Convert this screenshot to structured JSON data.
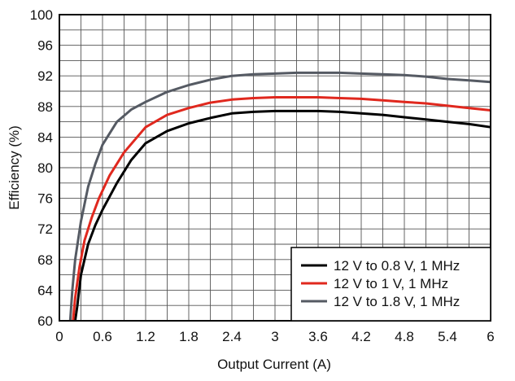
{
  "chart_data": {
    "type": "line",
    "xlabel": "Output Current (A)",
    "ylabel": "Efficiency (%)",
    "xlim": [
      0,
      6
    ],
    "ylim": [
      60,
      100
    ],
    "x_ticks": [
      "0",
      "0.6",
      "1.2",
      "1.8",
      "2.4",
      "3",
      "3.6",
      "4.2",
      "4.8",
      "5.4",
      "6"
    ],
    "y_ticks": [
      "60",
      "64",
      "68",
      "72",
      "76",
      "80",
      "84",
      "88",
      "92",
      "96",
      "100"
    ],
    "grid": true,
    "legend_position": "bottom-right",
    "series": [
      {
        "name": "12 V to 0.8 V, 1 MHz",
        "color": "#000000",
        "points": [
          [
            0.22,
            60
          ],
          [
            0.25,
            62
          ],
          [
            0.3,
            66
          ],
          [
            0.4,
            70
          ],
          [
            0.5,
            72.5
          ],
          [
            0.6,
            74.5
          ],
          [
            0.8,
            78
          ],
          [
            1.0,
            81
          ],
          [
            1.2,
            83.2
          ],
          [
            1.5,
            84.8
          ],
          [
            1.8,
            85.8
          ],
          [
            2.1,
            86.5
          ],
          [
            2.4,
            87.1
          ],
          [
            2.7,
            87.3
          ],
          [
            3.0,
            87.4
          ],
          [
            3.3,
            87.4
          ],
          [
            3.6,
            87.4
          ],
          [
            3.9,
            87.3
          ],
          [
            4.2,
            87.1
          ],
          [
            4.5,
            86.9
          ],
          [
            4.8,
            86.6
          ],
          [
            5.1,
            86.3
          ],
          [
            5.4,
            86.0
          ],
          [
            5.7,
            85.7
          ],
          [
            6.0,
            85.3
          ]
        ]
      },
      {
        "name": "12 V to 1 V, 1 MHz",
        "color": "#e0281e",
        "points": [
          [
            0.19,
            60
          ],
          [
            0.22,
            63
          ],
          [
            0.28,
            67
          ],
          [
            0.35,
            70.5
          ],
          [
            0.45,
            73.5
          ],
          [
            0.55,
            76
          ],
          [
            0.7,
            79
          ],
          [
            0.9,
            82
          ],
          [
            1.2,
            85.3
          ],
          [
            1.5,
            86.9
          ],
          [
            1.8,
            87.8
          ],
          [
            2.1,
            88.5
          ],
          [
            2.4,
            88.9
          ],
          [
            2.7,
            89.1
          ],
          [
            3.0,
            89.2
          ],
          [
            3.3,
            89.2
          ],
          [
            3.6,
            89.2
          ],
          [
            3.9,
            89.1
          ],
          [
            4.2,
            89.0
          ],
          [
            4.5,
            88.8
          ],
          [
            4.8,
            88.6
          ],
          [
            5.1,
            88.4
          ],
          [
            5.4,
            88.1
          ],
          [
            5.7,
            87.8
          ],
          [
            6.0,
            87.5
          ]
        ]
      },
      {
        "name": "12 V to 1.8 V, 1 MHz",
        "color": "#555a63",
        "points": [
          [
            0.15,
            60
          ],
          [
            0.18,
            64
          ],
          [
            0.22,
            68
          ],
          [
            0.3,
            73
          ],
          [
            0.4,
            77.5
          ],
          [
            0.5,
            80.5
          ],
          [
            0.6,
            83
          ],
          [
            0.8,
            86
          ],
          [
            1.0,
            87.6
          ],
          [
            1.2,
            88.6
          ],
          [
            1.5,
            89.9
          ],
          [
            1.8,
            90.8
          ],
          [
            2.1,
            91.5
          ],
          [
            2.4,
            92.0
          ],
          [
            2.7,
            92.2
          ],
          [
            3.0,
            92.3
          ],
          [
            3.3,
            92.4
          ],
          [
            3.6,
            92.4
          ],
          [
            3.9,
            92.4
          ],
          [
            4.2,
            92.3
          ],
          [
            4.5,
            92.2
          ],
          [
            4.8,
            92.1
          ],
          [
            5.1,
            91.9
          ],
          [
            5.4,
            91.6
          ],
          [
            5.7,
            91.4
          ],
          [
            6.0,
            91.2
          ]
        ]
      }
    ]
  }
}
